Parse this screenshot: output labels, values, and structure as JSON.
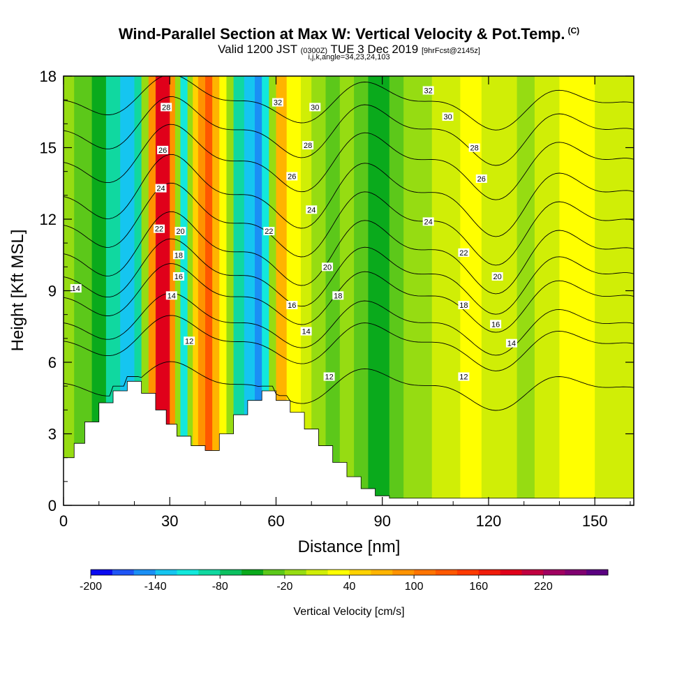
{
  "titles": {
    "main": "Wind-Parallel Section at Max W: Vertical Velocity & Pot.Temp.",
    "main_mark": "(C)",
    "valid_a": "Valid 1200 JST",
    "valid_b": "(0300Z)",
    "valid_c": "TUE 3 Dec 2019",
    "valid_d": "[9hrFcst@2145z]",
    "params": "i,j,k,angle=34,23,24,103"
  },
  "chart_data": {
    "type": "heatmap",
    "xlabel": "Distance [nm]",
    "ylabel": "Height [Kft MSL]",
    "xlim": [
      0,
      161
    ],
    "ylim": [
      0,
      18
    ],
    "x_ticks": [
      "0",
      "30",
      "60",
      "90",
      "120",
      "150"
    ],
    "y_ticks": [
      "0",
      "3",
      "6",
      "9",
      "12",
      "15",
      "18"
    ],
    "colorbar": {
      "label": "Vertical Velocity [cm/s]",
      "tick_labels": [
        "-200",
        "-140",
        "-80",
        "-20",
        "40",
        "100",
        "160",
        "220"
      ],
      "colors": [
        "#0a0af0",
        "#1f55f5",
        "#1a8ff5",
        "#15c5f0",
        "#12e8dc",
        "#10d8a0",
        "#0cc060",
        "#0aaa1c",
        "#5cc81a",
        "#96dc12",
        "#d0ee06",
        "#ffff00",
        "#ffd200",
        "#ffb400",
        "#ff9300",
        "#ff7400",
        "#ff5800",
        "#ff3a00",
        "#f01c0a",
        "#e0001a",
        "#c00040",
        "#a00060",
        "#800070",
        "#5a0080"
      ]
    },
    "vertical_velocity_bands": [
      {
        "x_from": 0,
        "x_to": 3,
        "color": "#96dc12"
      },
      {
        "x_from": 3,
        "x_to": 8,
        "color": "#5cc81a"
      },
      {
        "x_from": 8,
        "x_to": 12,
        "color": "#0aaa1c"
      },
      {
        "x_from": 12,
        "x_to": 16,
        "color": "#10d8a0"
      },
      {
        "x_from": 16,
        "x_to": 20,
        "color": "#15c5f0"
      },
      {
        "x_from": 20,
        "x_to": 22,
        "color": "#10d8a0"
      },
      {
        "x_from": 22,
        "x_to": 24,
        "color": "#96dc12"
      },
      {
        "x_from": 24,
        "x_to": 26,
        "color": "#ff9300"
      },
      {
        "x_from": 26,
        "x_to": 30,
        "color": "#e0001a"
      },
      {
        "x_from": 30,
        "x_to": 31.5,
        "color": "#ff9300"
      },
      {
        "x_from": 31.5,
        "x_to": 33,
        "color": "#96dc12"
      },
      {
        "x_from": 33,
        "x_to": 35,
        "color": "#12e8dc"
      },
      {
        "x_from": 35,
        "x_to": 36.5,
        "color": "#96dc12"
      },
      {
        "x_from": 36.5,
        "x_to": 38,
        "color": "#ffd200"
      },
      {
        "x_from": 38,
        "x_to": 40,
        "color": "#ff9300"
      },
      {
        "x_from": 40,
        "x_to": 42,
        "color": "#ff5800"
      },
      {
        "x_from": 42,
        "x_to": 44,
        "color": "#ffb400"
      },
      {
        "x_from": 44,
        "x_to": 46,
        "color": "#ffff00"
      },
      {
        "x_from": 46,
        "x_to": 48,
        "color": "#96dc12"
      },
      {
        "x_from": 48,
        "x_to": 51,
        "color": "#10d8a0"
      },
      {
        "x_from": 51,
        "x_to": 54,
        "color": "#15c5f0"
      },
      {
        "x_from": 54,
        "x_to": 56,
        "color": "#1a8ff5"
      },
      {
        "x_from": 56,
        "x_to": 58,
        "color": "#12e8dc"
      },
      {
        "x_from": 58,
        "x_to": 60,
        "color": "#96dc12"
      },
      {
        "x_from": 60,
        "x_to": 63,
        "color": "#ffb400"
      },
      {
        "x_from": 63,
        "x_to": 67,
        "color": "#ffff00"
      },
      {
        "x_from": 67,
        "x_to": 70,
        "color": "#d0ee06"
      },
      {
        "x_from": 70,
        "x_to": 74,
        "color": "#96dc12"
      },
      {
        "x_from": 74,
        "x_to": 78,
        "color": "#5cc81a"
      },
      {
        "x_from": 78,
        "x_to": 82,
        "color": "#96dc12"
      },
      {
        "x_from": 82,
        "x_to": 86,
        "color": "#5cc81a"
      },
      {
        "x_from": 86,
        "x_to": 92,
        "color": "#0aaa1c"
      },
      {
        "x_from": 92,
        "x_to": 96,
        "color": "#5cc81a"
      },
      {
        "x_from": 96,
        "x_to": 104,
        "color": "#96dc12"
      },
      {
        "x_from": 104,
        "x_to": 112,
        "color": "#d0ee06"
      },
      {
        "x_from": 112,
        "x_to": 118,
        "color": "#ffff00"
      },
      {
        "x_from": 118,
        "x_to": 128,
        "color": "#d0ee06"
      },
      {
        "x_from": 128,
        "x_to": 133,
        "color": "#96dc12"
      },
      {
        "x_from": 133,
        "x_to": 140,
        "color": "#d0ee06"
      },
      {
        "x_from": 140,
        "x_to": 150,
        "color": "#ffff00"
      },
      {
        "x_from": 150,
        "x_to": 161,
        "color": "#d0ee06"
      }
    ],
    "terrain": [
      [
        0,
        2
      ],
      [
        3,
        2.6
      ],
      [
        6,
        3.5
      ],
      [
        10,
        4.3
      ],
      [
        14,
        4.8
      ],
      [
        18,
        5.2
      ],
      [
        22,
        4.7
      ],
      [
        26,
        4.0
      ],
      [
        29,
        3.4
      ],
      [
        32,
        2.9
      ],
      [
        36,
        2.5
      ],
      [
        40,
        2.3
      ],
      [
        44,
        3.0
      ],
      [
        48,
        3.8
      ],
      [
        52,
        4.4
      ],
      [
        56,
        4.8
      ],
      [
        60,
        4.4
      ],
      [
        64,
        3.9
      ],
      [
        68,
        3.2
      ],
      [
        72,
        2.5
      ],
      [
        76,
        1.8
      ],
      [
        80,
        1.2
      ],
      [
        84,
        0.7
      ],
      [
        88,
        0.4
      ],
      [
        92,
        0.3
      ],
      [
        161,
        0.3
      ]
    ],
    "potential_temperature_contours": [
      {
        "value": 12,
        "base_km": 5.0,
        "amp": 0.6
      },
      {
        "value": 14,
        "base_km": 6.8,
        "amp": 0.7
      },
      {
        "value": 16,
        "base_km": 7.6,
        "amp": 0.8
      },
      {
        "value": 18,
        "base_km": 8.7,
        "amp": 0.9
      },
      {
        "value": 20,
        "base_km": 9.6,
        "amp": 1.0
      },
      {
        "value": 22,
        "base_km": 10.6,
        "amp": 1.1
      },
      {
        "value": 24,
        "base_km": 11.8,
        "amp": 1.1
      },
      {
        "value": 26,
        "base_km": 13.0,
        "amp": 1.1
      },
      {
        "value": 28,
        "base_km": 14.4,
        "amp": 1.0
      },
      {
        "value": 30,
        "base_km": 15.7,
        "amp": 0.9
      },
      {
        "value": 32,
        "base_km": 16.9,
        "amp": 0.7
      }
    ],
    "contour_labels": [
      {
        "text": "28",
        "x": 29,
        "y": 16.7
      },
      {
        "text": "26",
        "x": 28,
        "y": 14.9
      },
      {
        "text": "24",
        "x": 27.5,
        "y": 13.3
      },
      {
        "text": "22",
        "x": 27,
        "y": 11.6
      },
      {
        "text": "20",
        "x": 33,
        "y": 11.5
      },
      {
        "text": "18",
        "x": 32.5,
        "y": 10.5
      },
      {
        "text": "16",
        "x": 32.5,
        "y": 9.6
      },
      {
        "text": "14",
        "x": 30.5,
        "y": 8.8
      },
      {
        "text": "12",
        "x": 35.5,
        "y": 6.9
      },
      {
        "text": "14",
        "x": 3.5,
        "y": 9.1
      },
      {
        "text": "32",
        "x": 60.5,
        "y": 16.9
      },
      {
        "text": "30",
        "x": 71,
        "y": 16.7
      },
      {
        "text": "28",
        "x": 69,
        "y": 15.1
      },
      {
        "text": "26",
        "x": 64.5,
        "y": 13.8
      },
      {
        "text": "24",
        "x": 70,
        "y": 12.4
      },
      {
        "text": "22",
        "x": 58,
        "y": 11.5
      },
      {
        "text": "20",
        "x": 74.5,
        "y": 10.0
      },
      {
        "text": "18",
        "x": 77.5,
        "y": 8.8
      },
      {
        "text": "16",
        "x": 64.5,
        "y": 8.4
      },
      {
        "text": "14",
        "x": 68.5,
        "y": 7.3
      },
      {
        "text": "12",
        "x": 75,
        "y": 5.4
      },
      {
        "text": "32",
        "x": 103,
        "y": 17.4
      },
      {
        "text": "30",
        "x": 108.5,
        "y": 16.3
      },
      {
        "text": "28",
        "x": 116,
        "y": 15.0
      },
      {
        "text": "26",
        "x": 118,
        "y": 13.7
      },
      {
        "text": "24",
        "x": 103,
        "y": 11.9
      },
      {
        "text": "22",
        "x": 113,
        "y": 10.6
      },
      {
        "text": "20",
        "x": 122.5,
        "y": 9.6
      },
      {
        "text": "18",
        "x": 113,
        "y": 8.4
      },
      {
        "text": "16",
        "x": 122,
        "y": 7.6
      },
      {
        "text": "14",
        "x": 126.5,
        "y": 6.8
      },
      {
        "text": "12",
        "x": 113,
        "y": 5.4
      }
    ]
  }
}
